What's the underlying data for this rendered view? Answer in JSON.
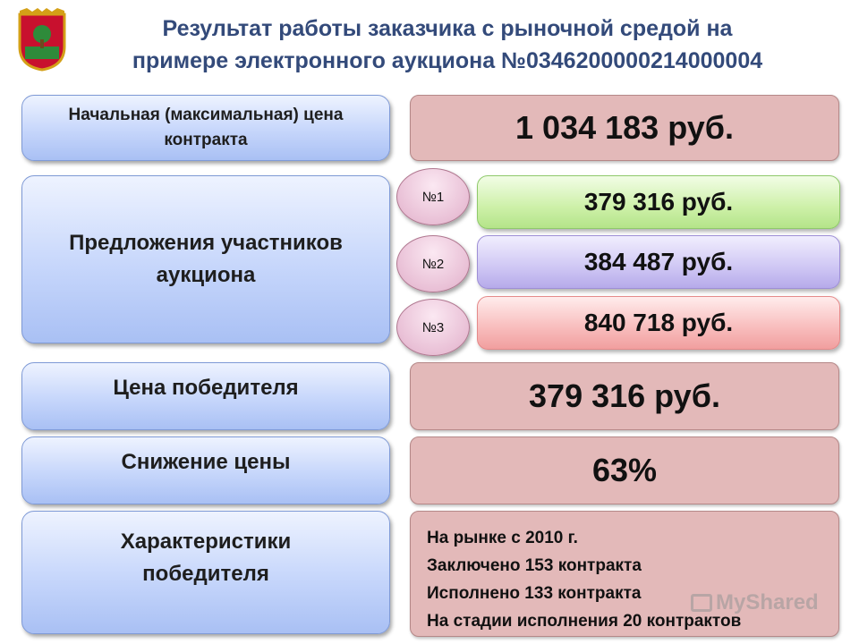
{
  "title": {
    "line1": "Результат работы заказчика с рыночной средой на",
    "line2": "примере электронного аукциона №0346200000214000004"
  },
  "rows": {
    "initial_price": {
      "label": "Начальная (максимальная) цена контракта",
      "value": "1 034 183 руб."
    },
    "bids": {
      "label": "Предложения участников аукциона",
      "items": [
        {
          "number": "№1",
          "value": "379 316 руб."
        },
        {
          "number": "№2",
          "value": "384 487 руб."
        },
        {
          "number": "№3",
          "value": "840 718 руб."
        }
      ]
    },
    "winner_price": {
      "label": "Цена победителя",
      "value": "379 316 руб."
    },
    "price_reduction": {
      "label": "Снижение цены",
      "value": "63%"
    },
    "winner_chars": {
      "label": "Характеристики победителя",
      "lines": [
        "На рынке с 2010 г.",
        "Заключено 153 контракта",
        "Исполнено 133 контракта",
        "На стадии исполнения 20 контрактов"
      ]
    }
  },
  "watermark": "MyShared",
  "colors": {
    "title": "#334a7a",
    "label_box": "#c6d6fb",
    "value_box": "#e3b9b9",
    "bid1": "#cdf0a8",
    "bid2": "#cfc7f4",
    "bid3": "#f8bcbc"
  }
}
